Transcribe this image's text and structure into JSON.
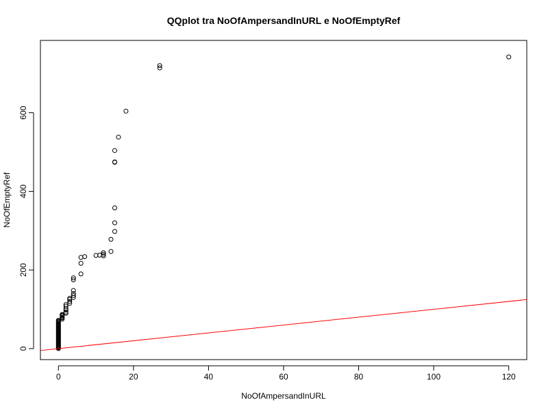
{
  "chart_data": {
    "type": "scatter",
    "title": "QQplot tra NoOfAmpersandInURL e NoOfEmptyRef",
    "xlabel": "NoOfAmpersandInURL",
    "ylabel": "NoOfEmptyRef",
    "xlim": [
      -4.8,
      124.8
    ],
    "ylim": [
      -28,
      784
    ],
    "xticks": [
      0,
      20,
      40,
      60,
      80,
      100,
      120
    ],
    "yticks": [
      0,
      200,
      400,
      600
    ],
    "grid": false,
    "point_style": "open circle",
    "reference_line": {
      "slope": 1,
      "intercept": 0,
      "color": "#ff0000"
    },
    "points": [
      [
        0,
        0
      ],
      [
        0,
        2
      ],
      [
        0,
        4
      ],
      [
        0,
        6
      ],
      [
        0,
        8
      ],
      [
        0,
        10
      ],
      [
        0,
        12
      ],
      [
        0,
        14
      ],
      [
        0,
        16
      ],
      [
        0,
        18
      ],
      [
        0,
        20
      ],
      [
        0,
        22
      ],
      [
        0,
        24
      ],
      [
        0,
        26
      ],
      [
        0,
        28
      ],
      [
        0,
        30
      ],
      [
        0,
        32
      ],
      [
        0,
        34
      ],
      [
        0,
        36
      ],
      [
        0,
        38
      ],
      [
        0,
        40
      ],
      [
        0,
        42
      ],
      [
        0,
        44
      ],
      [
        0,
        46
      ],
      [
        0,
        48
      ],
      [
        0,
        50
      ],
      [
        0,
        52
      ],
      [
        0,
        54
      ],
      [
        0,
        56
      ],
      [
        0,
        58
      ],
      [
        0,
        60
      ],
      [
        0,
        62
      ],
      [
        0,
        64
      ],
      [
        0,
        66
      ],
      [
        0,
        68
      ],
      [
        0,
        70
      ],
      [
        0,
        72
      ],
      [
        1,
        75
      ],
      [
        1,
        78
      ],
      [
        1,
        80
      ],
      [
        1,
        83
      ],
      [
        1,
        85
      ],
      [
        1,
        87
      ],
      [
        2,
        90
      ],
      [
        2,
        93
      ],
      [
        2,
        98
      ],
      [
        2,
        102
      ],
      [
        2,
        108
      ],
      [
        2,
        112
      ],
      [
        3,
        115
      ],
      [
        3,
        120
      ],
      [
        3,
        125
      ],
      [
        3,
        128
      ],
      [
        4,
        130
      ],
      [
        4,
        135
      ],
      [
        4,
        140
      ],
      [
        4,
        148
      ],
      [
        4,
        175
      ],
      [
        4,
        180
      ],
      [
        6,
        190
      ],
      [
        6,
        217
      ],
      [
        6,
        232
      ],
      [
        7,
        234
      ],
      [
        10,
        237
      ],
      [
        11,
        238
      ],
      [
        12,
        236
      ],
      [
        12,
        240
      ],
      [
        12,
        244
      ],
      [
        14,
        247
      ],
      [
        14,
        278
      ],
      [
        15,
        298
      ],
      [
        15,
        320
      ],
      [
        15,
        358
      ],
      [
        15,
        474
      ],
      [
        15,
        475
      ],
      [
        15,
        504
      ],
      [
        16,
        538
      ],
      [
        18,
        604
      ],
      [
        27,
        714
      ],
      [
        27,
        720
      ],
      [
        120,
        742
      ]
    ]
  }
}
